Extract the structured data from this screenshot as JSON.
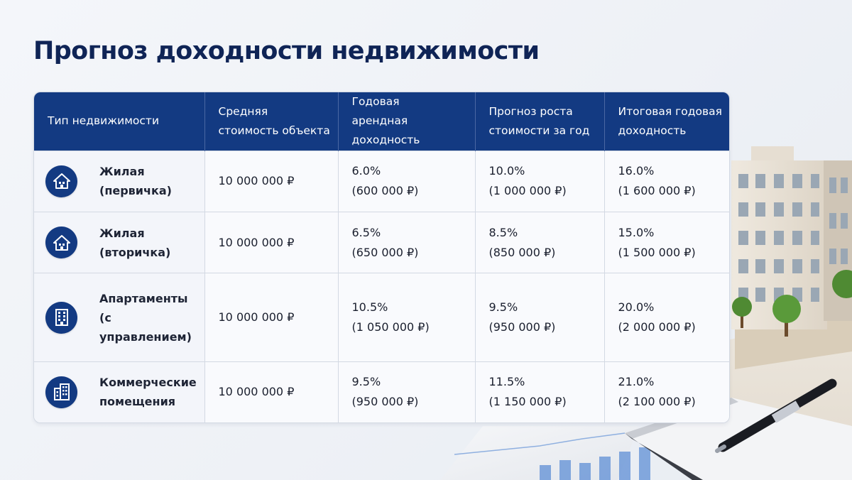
{
  "title": "Прогноз доходности недвижимости",
  "colors": {
    "header_bg": "#133a82",
    "title": "#0f2456",
    "icon_bg": "#133a82"
  },
  "table": {
    "headers": [
      [
        "Тип недвижимости"
      ],
      [
        "Средняя",
        "стоимость объекта"
      ],
      [
        "Годовая",
        "арендная доходность"
      ],
      [
        "Прогноз роста",
        "стоимости за год"
      ],
      [
        "Итоговая годовая",
        "доходность"
      ]
    ],
    "rows": [
      {
        "icon": "house-icon",
        "type": [
          "Жилая",
          "(первичка)"
        ],
        "cost": "10 000 000 ₽",
        "rental": [
          "6.0%",
          "(600 000 ₽)"
        ],
        "growth": [
          "10.0%",
          "(1 000 000 ₽)"
        ],
        "total": [
          "16.0%",
          "(1 600 000 ₽)"
        ]
      },
      {
        "icon": "house-icon",
        "type": [
          "Жилая",
          "(вторичка)"
        ],
        "cost": "10 000 000 ₽",
        "rental": [
          "6.5%",
          "(650 000 ₽)"
        ],
        "growth": [
          "8.5%",
          "(850 000 ₽)"
        ],
        "total": [
          "15.0%",
          "(1 500 000 ₽)"
        ]
      },
      {
        "icon": "building-icon",
        "type": [
          "Апартаменты",
          "(с управлением)"
        ],
        "cost": "10 000 000 ₽",
        "rental": [
          "10.5%",
          "(1 050 000 ₽)"
        ],
        "growth": [
          "9.5%",
          "(950 000 ₽)"
        ],
        "total": [
          "20.0%",
          "(2 000 000 ₽)"
        ]
      },
      {
        "icon": "office-building-icon",
        "type": [
          "Коммерческие",
          "помещения"
        ],
        "cost": "10 000 000 ₽",
        "rental": [
          "9.5%",
          "(950 000 ₽)"
        ],
        "growth": [
          "11.5%",
          "(1 150 000 ₽)"
        ],
        "total": [
          "21.0%",
          "(2 100 000 ₽)"
        ]
      }
    ]
  }
}
